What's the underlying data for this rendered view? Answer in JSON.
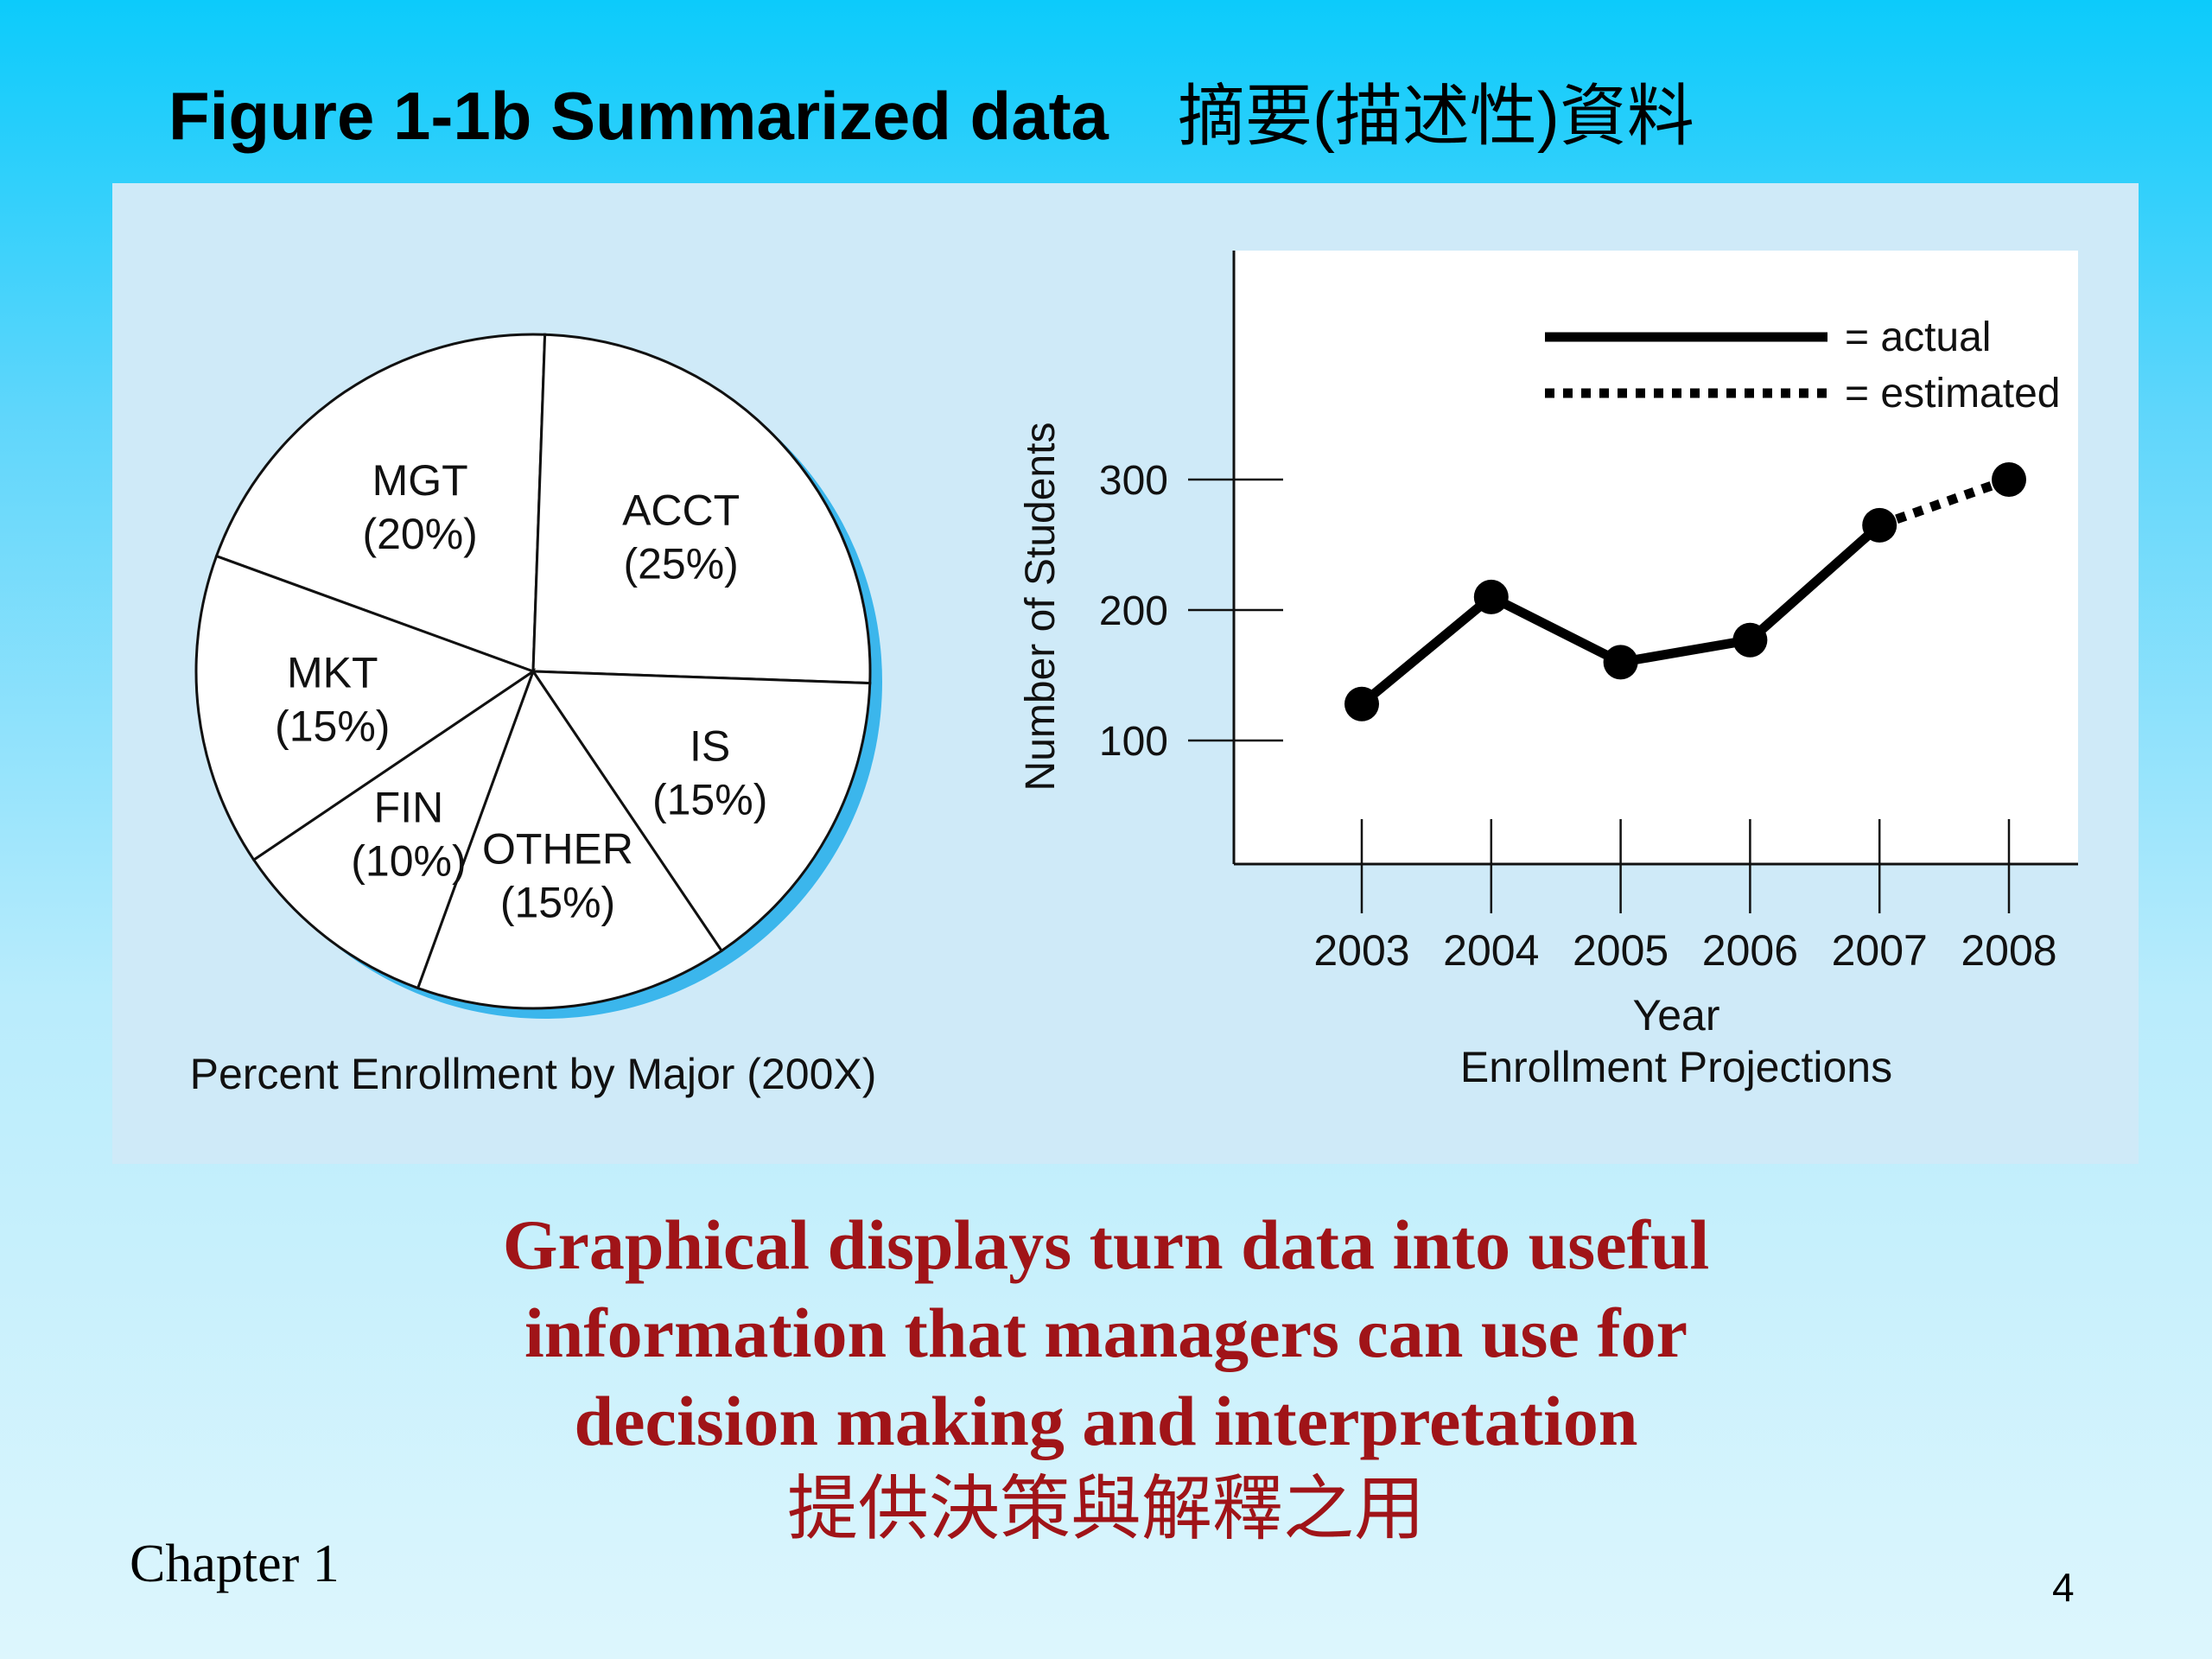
{
  "slide": {
    "title": "Figure 1-1b Summarized data",
    "title_cjk": "摘要(描述性)資料",
    "caption_lines": [
      "Graphical displays turn data into useful",
      "information that managers can use for",
      "decision making and interpretation"
    ],
    "caption_cjk": "提供決策與解釋之用",
    "footer": "Chapter 1",
    "page_number": "4"
  },
  "chart_data": [
    {
      "type": "pie",
      "title": "Percent Enrollment by Major (200X)",
      "slices": [
        {
          "label": "MGT",
          "value_label": "(20%)",
          "value": 20
        },
        {
          "label": "ACCT",
          "value_label": "(25%)",
          "value": 25
        },
        {
          "label": "IS",
          "value_label": "(15%)",
          "value": 15
        },
        {
          "label": "OTHER",
          "value_label": "(15%)",
          "value": 15
        },
        {
          "label": "FIN",
          "value_label": "(10%)",
          "value": 10
        },
        {
          "label": "MKT",
          "value_label": "(15%)",
          "value": 15
        }
      ],
      "colors": {
        "fill": "#ffffff",
        "stroke": "#111111",
        "shadow": "#3bb6ec"
      }
    },
    {
      "type": "line",
      "title": "Enrollment Projections",
      "xlabel": "Year",
      "ylabel": "Number of Students",
      "x": [
        2003,
        2004,
        2005,
        2006,
        2007,
        2008
      ],
      "xticks": [
        "2003",
        "2004",
        "2005",
        "2006",
        "2007",
        "2008"
      ],
      "yticks": [
        100,
        200,
        300
      ],
      "ytick_labels": [
        "100",
        "200",
        "300"
      ],
      "ylim": [
        0,
        400
      ],
      "series": [
        {
          "name": "actual",
          "x": [
            2003,
            2004,
            2005,
            2006,
            2007
          ],
          "values": [
            128,
            210,
            160,
            177,
            265
          ],
          "style": "solid"
        },
        {
          "name": "estimated",
          "x": [
            2007,
            2008
          ],
          "values": [
            265,
            300
          ],
          "style": "dotted"
        }
      ],
      "legend": {
        "position": "top-right",
        "entries": [
          "= actual",
          "= estimated"
        ]
      },
      "grid": false,
      "colors": {
        "line": "#000000",
        "plot_bg": "#ffffff"
      }
    }
  ]
}
